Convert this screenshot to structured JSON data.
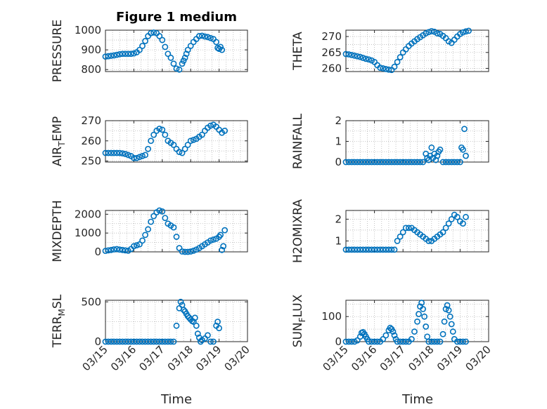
{
  "chart_data": {
    "type": "scatter",
    "figure_title": "Figure 1 medium",
    "xlabel": "Time",
    "xticks": [
      "03/15",
      "03/16",
      "03/17",
      "03/18",
      "03/19",
      "03/20"
    ],
    "xlim": [
      0,
      5
    ],
    "marker_color": "#0072BD",
    "grid": true,
    "panels": [
      {
        "id": "pressure",
        "ylabel": "PRESSURE",
        "yticks": [
          800,
          900,
          1000
        ],
        "ylim": [
          790,
          1000
        ],
        "x": [
          0,
          0.1,
          0.2,
          0.3,
          0.4,
          0.5,
          0.6,
          0.7,
          0.8,
          0.9,
          1.0,
          1.1,
          1.2,
          1.3,
          1.4,
          1.5,
          1.6,
          1.7,
          1.8,
          1.9,
          2.0,
          2.1,
          2.2,
          2.3,
          2.4,
          2.5,
          2.6,
          2.7,
          2.75,
          2.8,
          2.85,
          2.9,
          3.0,
          3.1,
          3.2,
          3.3,
          3.4,
          3.5,
          3.6,
          3.7,
          3.8,
          3.9,
          3.95,
          4.0,
          4.05,
          4.1
        ],
        "y": [
          866,
          868,
          870,
          872,
          875,
          878,
          880,
          880,
          880,
          880,
          882,
          888,
          900,
          920,
          945,
          970,
          985,
          988,
          985,
          970,
          950,
          915,
          880,
          860,
          830,
          805,
          800,
          830,
          845,
          860,
          880,
          900,
          920,
          940,
          955,
          970,
          972,
          968,
          965,
          960,
          955,
          940,
          910,
          905,
          915,
          900
        ]
      },
      {
        "id": "theta",
        "ylabel": "THETA",
        "yticks": [
          260,
          265,
          270
        ],
        "ylim": [
          259,
          272
        ],
        "x": [
          0,
          0.1,
          0.2,
          0.3,
          0.4,
          0.5,
          0.6,
          0.7,
          0.8,
          0.9,
          1.0,
          1.1,
          1.2,
          1.3,
          1.4,
          1.5,
          1.6,
          1.7,
          1.8,
          1.9,
          2.0,
          2.1,
          2.2,
          2.3,
          2.4,
          2.5,
          2.6,
          2.7,
          2.8,
          2.9,
          3.0,
          3.1,
          3.2,
          3.3,
          3.4,
          3.5,
          3.6,
          3.7,
          3.8,
          3.9,
          4.0,
          4.1,
          4.2,
          4.3
        ],
        "y": [
          264.5,
          264.4,
          264.2,
          264,
          263.8,
          263.6,
          263.3,
          263,
          262.8,
          262.5,
          262,
          261,
          260.2,
          260,
          259.8,
          259.6,
          259.5,
          260.5,
          262,
          263.5,
          265,
          266,
          267,
          267.8,
          268.5,
          269.2,
          269.8,
          270.4,
          271,
          271.4,
          271.7,
          271.5,
          271,
          270.8,
          270.2,
          269.5,
          268.5,
          268,
          269,
          270,
          270.8,
          271.3,
          271.6,
          271.8
        ]
      },
      {
        "id": "air_temp",
        "ylabel": "AIR_TEMP",
        "yticks": [
          250,
          260,
          270
        ],
        "ylim": [
          249.5,
          270
        ],
        "x": [
          0,
          0.1,
          0.2,
          0.3,
          0.4,
          0.5,
          0.6,
          0.7,
          0.8,
          0.9,
          1.0,
          1.1,
          1.2,
          1.3,
          1.4,
          1.5,
          1.6,
          1.7,
          1.8,
          1.9,
          2.0,
          2.1,
          2.2,
          2.3,
          2.4,
          2.5,
          2.6,
          2.7,
          2.8,
          2.9,
          3.0,
          3.1,
          3.2,
          3.3,
          3.4,
          3.5,
          3.6,
          3.7,
          3.8,
          3.9,
          4.0,
          4.1,
          4.2
        ],
        "y": [
          254,
          254,
          254,
          254,
          254,
          254,
          253.8,
          253.5,
          253,
          252.5,
          251.5,
          251.5,
          252,
          252.5,
          253,
          256,
          260,
          263,
          265,
          266,
          265.5,
          263,
          260,
          259,
          258,
          256,
          254.5,
          254,
          256,
          258,
          260,
          260.5,
          261,
          262,
          263,
          265,
          266.5,
          267.5,
          268,
          267,
          265.5,
          264,
          265
        ]
      },
      {
        "id": "rainfall",
        "ylabel": "RAINFALL",
        "yticks": [
          0,
          1,
          2
        ],
        "ylim": [
          0,
          2
        ],
        "x": [
          0,
          0.1,
          0.2,
          0.3,
          0.4,
          0.5,
          0.6,
          0.7,
          0.8,
          0.9,
          1.0,
          1.1,
          1.2,
          1.3,
          1.4,
          1.5,
          1.6,
          1.7,
          1.8,
          1.9,
          2.0,
          2.1,
          2.2,
          2.3,
          2.4,
          2.5,
          2.6,
          2.7,
          2.8,
          2.85,
          2.9,
          2.95,
          3.0,
          3.05,
          3.1,
          3.15,
          3.2,
          3.25,
          3.3,
          3.4,
          3.5,
          3.6,
          3.7,
          3.8,
          3.9,
          4.0,
          4.05,
          4.1,
          4.15,
          4.2
        ],
        "y": [
          0,
          0,
          0,
          0,
          0,
          0,
          0,
          0,
          0,
          0,
          0,
          0,
          0,
          0,
          0,
          0,
          0,
          0,
          0,
          0,
          0,
          0,
          0,
          0,
          0,
          0,
          0,
          0,
          0.4,
          0.2,
          0.1,
          0.3,
          0.7,
          0.2,
          0.4,
          0.1,
          0.3,
          0.5,
          0.6,
          0,
          0,
          0,
          0,
          0,
          0,
          0,
          0.7,
          0.6,
          1.6,
          0.3
        ]
      },
      {
        "id": "mixdepth",
        "ylabel": "MIXDEPTH",
        "yticks": [
          0,
          1000,
          2000
        ],
        "ylim": [
          0,
          2200
        ],
        "x": [
          0,
          0.1,
          0.2,
          0.3,
          0.4,
          0.5,
          0.6,
          0.7,
          0.8,
          0.9,
          1.0,
          1.1,
          1.2,
          1.3,
          1.4,
          1.5,
          1.6,
          1.7,
          1.8,
          1.9,
          2.0,
          2.1,
          2.2,
          2.3,
          2.4,
          2.5,
          2.6,
          2.7,
          2.8,
          2.9,
          3.0,
          3.1,
          3.2,
          3.3,
          3.4,
          3.5,
          3.6,
          3.7,
          3.8,
          3.9,
          4.0,
          4.05,
          4.1,
          4.15,
          4.2
        ],
        "y": [
          50,
          80,
          100,
          130,
          150,
          120,
          100,
          80,
          60,
          150,
          300,
          350,
          400,
          600,
          900,
          1200,
          1600,
          1900,
          2100,
          2200,
          2150,
          1800,
          1500,
          1400,
          1300,
          800,
          200,
          20,
          0,
          0,
          20,
          60,
          120,
          200,
          300,
          400,
          500,
          600,
          650,
          700,
          800,
          900,
          100,
          300,
          1150
        ]
      },
      {
        "id": "h2omixra",
        "ylabel": "H2OMIXRA",
        "yticks": [
          1,
          2
        ],
        "ylim": [
          0.5,
          2.4
        ],
        "x": [
          0,
          0.1,
          0.2,
          0.3,
          0.4,
          0.5,
          0.6,
          0.7,
          0.8,
          0.9,
          1.0,
          1.1,
          1.2,
          1.3,
          1.4,
          1.5,
          1.6,
          1.7,
          1.8,
          1.9,
          2.0,
          2.1,
          2.2,
          2.3,
          2.4,
          2.5,
          2.6,
          2.7,
          2.8,
          2.9,
          3.0,
          3.1,
          3.2,
          3.3,
          3.4,
          3.5,
          3.6,
          3.7,
          3.8,
          3.9,
          4.0,
          4.1,
          4.2
        ],
        "y": [
          0.6,
          0.6,
          0.6,
          0.6,
          0.6,
          0.6,
          0.6,
          0.6,
          0.6,
          0.6,
          0.6,
          0.6,
          0.6,
          0.6,
          0.6,
          0.6,
          0.6,
          0.6,
          1.0,
          1.2,
          1.4,
          1.6,
          1.6,
          1.6,
          1.5,
          1.4,
          1.3,
          1.2,
          1.1,
          1.0,
          1.0,
          1.1,
          1.2,
          1.3,
          1.4,
          1.6,
          1.8,
          2.0,
          2.2,
          2.1,
          1.9,
          1.8,
          2.1
        ]
      },
      {
        "id": "terr_msl",
        "ylabel": "TERR_MSL",
        "yticks": [
          0,
          500
        ],
        "ylim": [
          0,
          520
        ],
        "x": [
          0,
          0.1,
          0.2,
          0.3,
          0.4,
          0.5,
          0.6,
          0.7,
          0.8,
          0.9,
          1.0,
          1.1,
          1.2,
          1.3,
          1.4,
          1.5,
          1.6,
          1.7,
          1.8,
          1.9,
          2.0,
          2.1,
          2.2,
          2.3,
          2.4,
          2.5,
          2.6,
          2.65,
          2.7,
          2.75,
          2.8,
          2.85,
          2.9,
          2.95,
          3.0,
          3.05,
          3.1,
          3.15,
          3.2,
          3.25,
          3.3,
          3.35,
          3.4,
          3.5,
          3.6,
          3.7,
          3.8,
          3.9,
          3.95,
          4.0
        ],
        "y": [
          0,
          0,
          0,
          0,
          0,
          0,
          0,
          0,
          0,
          0,
          0,
          0,
          0,
          0,
          0,
          0,
          0,
          0,
          0,
          0,
          0,
          0,
          0,
          0,
          0,
          200,
          420,
          500,
          460,
          400,
          380,
          350,
          320,
          300,
          280,
          260,
          250,
          300,
          200,
          100,
          50,
          0,
          20,
          40,
          80,
          0,
          0,
          200,
          250,
          170
        ]
      },
      {
        "id": "sun_flux",
        "ylabel": "SUN_FLUX",
        "yticks": [
          0,
          100
        ],
        "ylim": [
          0,
          165
        ],
        "x": [
          0,
          0.1,
          0.2,
          0.3,
          0.4,
          0.5,
          0.55,
          0.6,
          0.65,
          0.7,
          0.75,
          0.8,
          0.9,
          1.0,
          1.1,
          1.2,
          1.3,
          1.4,
          1.5,
          1.55,
          1.6,
          1.65,
          1.7,
          1.75,
          1.8,
          1.9,
          2.0,
          2.1,
          2.2,
          2.3,
          2.4,
          2.5,
          2.55,
          2.6,
          2.65,
          2.7,
          2.75,
          2.8,
          2.85,
          2.9,
          3.0,
          3.1,
          3.2,
          3.3,
          3.4,
          3.45,
          3.5,
          3.55,
          3.6,
          3.65,
          3.7,
          3.75,
          3.8,
          3.9,
          4.0,
          4.1,
          4.2
        ],
        "y": [
          0,
          0,
          0,
          0,
          5,
          20,
          35,
          38,
          30,
          20,
          10,
          0,
          0,
          0,
          0,
          0,
          10,
          25,
          45,
          55,
          50,
          40,
          25,
          10,
          0,
          0,
          0,
          0,
          0,
          10,
          40,
          80,
          110,
          140,
          155,
          130,
          100,
          60,
          20,
          0,
          0,
          0,
          0,
          0,
          30,
          80,
          130,
          145,
          125,
          100,
          70,
          40,
          10,
          0,
          0,
          0,
          0
        ]
      }
    ]
  }
}
